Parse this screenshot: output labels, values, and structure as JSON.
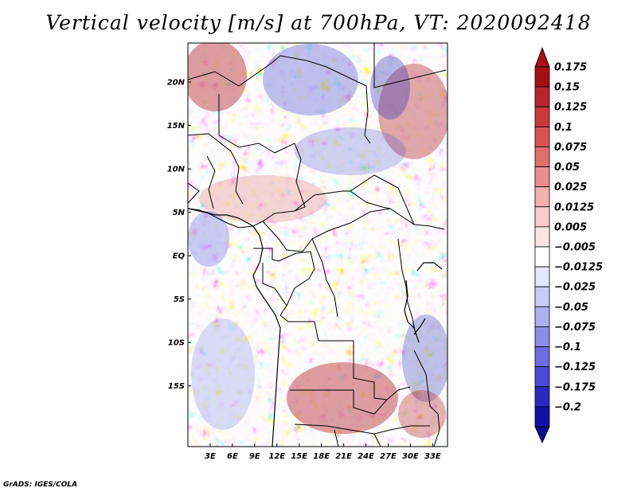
{
  "title": "Vertical velocity [m/s] at 700hPa, VT: 2020092418",
  "credit": "GrADS: IGES/COLA",
  "map": {
    "lon_range": [
      0,
      35
    ],
    "lat_range": [
      -22,
      24.5
    ],
    "lat_labels": [
      {
        "lat": 20,
        "text": "20N"
      },
      {
        "lat": 15,
        "text": "15N"
      },
      {
        "lat": 10,
        "text": "10N"
      },
      {
        "lat": 5,
        "text": "5N"
      },
      {
        "lat": 0,
        "text": "EQ"
      },
      {
        "lat": -5,
        "text": "5S"
      },
      {
        "lat": -10,
        "text": "10S"
      },
      {
        "lat": -15,
        "text": "15S"
      }
    ],
    "lon_labels": [
      {
        "lon": 3,
        "text": "3E"
      },
      {
        "lon": 6,
        "text": "6E"
      },
      {
        "lon": 9,
        "text": "9E"
      },
      {
        "lon": 12,
        "text": "12E"
      },
      {
        "lon": 15,
        "text": "15E"
      },
      {
        "lon": 18,
        "text": "18E"
      },
      {
        "lon": 21,
        "text": "21E"
      },
      {
        "lon": 24,
        "text": "24E"
      },
      {
        "lon": 27,
        "text": "27E"
      },
      {
        "lon": 30,
        "text": "30E"
      },
      {
        "lon": 33,
        "text": "33E"
      }
    ]
  },
  "colorbar": {
    "levels": [
      {
        "label": "0.175",
        "color": "#a50f15"
      },
      {
        "label": "0.15",
        "color": "#b8262b"
      },
      {
        "label": "0.125",
        "color": "#c93a3d"
      },
      {
        "label": "0.1",
        "color": "#d85252"
      },
      {
        "label": "0.075",
        "color": "#e06e6c"
      },
      {
        "label": "0.05",
        "color": "#ea8e8c"
      },
      {
        "label": "0.025",
        "color": "#f3b0ae"
      },
      {
        "label": "0.0125",
        "color": "#f8cdca"
      },
      {
        "label": "0.005",
        "color": "#fce6e4"
      },
      {
        "label": "−0.005",
        "color": "#ffffff"
      },
      {
        "label": "−0.0125",
        "color": "#e6e6fc"
      },
      {
        "label": "−0.025",
        "color": "#cacaf7"
      },
      {
        "label": "−0.05",
        "color": "#aeaef2"
      },
      {
        "label": "−0.075",
        "color": "#8c8ced"
      },
      {
        "label": "−0.1",
        "color": "#6c6ce3"
      },
      {
        "label": "−0.125",
        "color": "#4a4ad6"
      },
      {
        "label": "−0.175",
        "color": "#2a2ac2"
      },
      {
        "label": "−0.2",
        "color": "#1010a8"
      }
    ],
    "top_arrow_color": "#a50f15",
    "bottom_arrow_color": "#0b0b8e"
  }
}
